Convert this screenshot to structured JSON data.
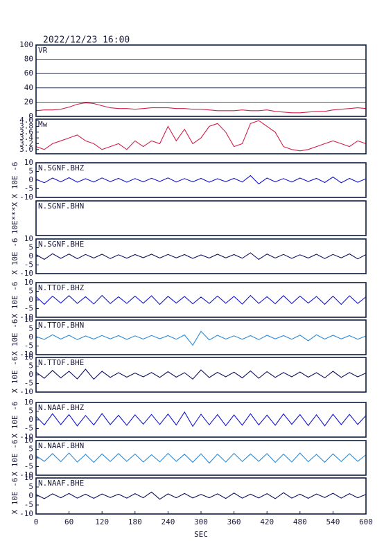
{
  "title": "2022/12/23 16:00",
  "chart_data": [
    {
      "type": "line",
      "title": "VR",
      "color": "#d0204a",
      "grid": true,
      "xlim": [
        0,
        600
      ],
      "ylim": [
        0,
        100
      ],
      "yticks": [
        0,
        20,
        40,
        60,
        80,
        100
      ],
      "x": [
        0,
        15,
        30,
        45,
        60,
        75,
        90,
        105,
        120,
        135,
        150,
        165,
        180,
        195,
        210,
        225,
        240,
        255,
        270,
        285,
        300,
        315,
        330,
        345,
        360,
        375,
        390,
        405,
        420,
        435,
        450,
        465,
        480,
        495,
        510,
        525,
        540,
        555,
        570,
        585,
        600
      ],
      "values": [
        8,
        9,
        9,
        10,
        13,
        17,
        19,
        18,
        15,
        12,
        11,
        11,
        10,
        11,
        12,
        12,
        12,
        11,
        11,
        10,
        10,
        9,
        8,
        8,
        8,
        9,
        8,
        8,
        9,
        7,
        6,
        5,
        5,
        6,
        7,
        7,
        9,
        10,
        11,
        12,
        11
      ]
    },
    {
      "type": "line",
      "title": "Mw",
      "color": "#d0204a",
      "xlim": [
        0,
        600
      ],
      "ylim": [
        2.85,
        4.05
      ],
      "yticks": [
        {
          "value": 3,
          "label": "3.0"
        },
        3.2,
        3.4,
        3.6,
        3.8,
        {
          "value": 4,
          "label": "4.0"
        }
      ],
      "x": [
        0,
        15,
        30,
        45,
        60,
        75,
        90,
        105,
        120,
        135,
        150,
        165,
        180,
        195,
        210,
        225,
        240,
        255,
        270,
        285,
        300,
        315,
        330,
        345,
        360,
        375,
        390,
        405,
        420,
        435,
        450,
        465,
        480,
        495,
        510,
        525,
        540,
        555,
        570,
        585,
        600
      ],
      "values": [
        3.1,
        3.0,
        3.2,
        3.3,
        3.4,
        3.5,
        3.3,
        3.2,
        3.0,
        3.1,
        3.2,
        3.0,
        3.3,
        3.1,
        3.3,
        3.2,
        3.8,
        3.3,
        3.7,
        3.2,
        3.4,
        3.8,
        3.9,
        3.6,
        3.1,
        3.2,
        3.9,
        4.0,
        3.8,
        3.6,
        3.1,
        3.0,
        2.95,
        3.0,
        3.1,
        3.2,
        3.3,
        3.2,
        3.1,
        3.3,
        3.2
      ]
    },
    {
      "type": "line",
      "title": "N.SGNF.BHZ",
      "y_label": "X 10E -6",
      "color": "#1414c8",
      "xlim": [
        0,
        600
      ],
      "ylim": [
        -10,
        10
      ],
      "yticks": [
        10,
        5,
        0,
        -5,
        -10
      ],
      "x": [
        0,
        15,
        30,
        45,
        60,
        75,
        90,
        105,
        120,
        135,
        150,
        165,
        180,
        195,
        210,
        225,
        240,
        255,
        270,
        285,
        300,
        315,
        330,
        345,
        360,
        375,
        390,
        405,
        420,
        435,
        450,
        465,
        480,
        495,
        510,
        525,
        540,
        555,
        570,
        585,
        600
      ],
      "values": [
        0.5,
        -1.5,
        1.2,
        -1,
        1.4,
        -1.2,
        0.8,
        -1.1,
        1.3,
        -0.9,
        1,
        -1.2,
        0.9,
        -1,
        1.1,
        -0.8,
        1.3,
        -1.1,
        0.9,
        -1,
        1,
        -1.2,
        0.8,
        -0.9,
        1,
        -1.1,
        2.6,
        -2.2,
        1.2,
        -1,
        0.9,
        -1.1,
        1.2,
        -0.8,
        1,
        -1.4,
        1.8,
        -1.5,
        1,
        -1.2,
        0.8
      ]
    },
    {
      "type": "line",
      "title": "N.SGNF.BHN",
      "y_label": "10E***X",
      "xlim": [
        0,
        600
      ]
    },
    {
      "type": "line",
      "title": "N.SGNF.BHE",
      "y_label": "X 10E -6",
      "color": "#101060",
      "xlim": [
        0,
        600
      ],
      "ylim": [
        -10,
        10
      ],
      "yticks": [
        10,
        5,
        0,
        -5,
        -10
      ],
      "x": [
        0,
        15,
        30,
        45,
        60,
        75,
        90,
        105,
        120,
        135,
        150,
        165,
        180,
        195,
        210,
        225,
        240,
        255,
        270,
        285,
        300,
        315,
        330,
        345,
        360,
        375,
        390,
        405,
        420,
        435,
        450,
        465,
        480,
        495,
        510,
        525,
        540,
        555,
        570,
        585,
        600
      ],
      "values": [
        1,
        -1.8,
        1.5,
        -1.2,
        1.3,
        -1.4,
        1.1,
        -1,
        1.2,
        -1.3,
        0.9,
        -1.1,
        1,
        -0.8,
        1.2,
        -1,
        1.1,
        -0.9,
        1,
        -1.2,
        0.8,
        -1,
        1.2,
        -0.9,
        1,
        -1.1,
        2,
        -1.8,
        1.3,
        -1,
        1.1,
        -1.2,
        0.9,
        -1,
        1.2,
        -1.3,
        1.1,
        -0.9,
        1.4,
        -1.5,
        1
      ]
    },
    {
      "type": "line",
      "title": "N.TTOF.BHZ",
      "y_label": "X 10E -6",
      "color": "#1414d0",
      "xlim": [
        0,
        600
      ],
      "ylim": [
        -10,
        10
      ],
      "yticks": [
        10,
        5,
        0,
        -5,
        -10
      ],
      "x": [
        0,
        15,
        30,
        45,
        60,
        75,
        90,
        105,
        120,
        135,
        150,
        165,
        180,
        195,
        210,
        225,
        240,
        255,
        270,
        285,
        300,
        315,
        330,
        345,
        360,
        375,
        390,
        405,
        420,
        435,
        450,
        465,
        480,
        495,
        510,
        525,
        540,
        555,
        570,
        585,
        600
      ],
      "values": [
        2,
        -2.5,
        2.2,
        -1.8,
        2.5,
        -2,
        1.9,
        -2.3,
        2.6,
        -2.1,
        1.8,
        -2,
        2.2,
        -1.9,
        2.4,
        -2.6,
        2.1,
        -1.8,
        2,
        -2.2,
        1.7,
        -2,
        2.3,
        -1.9,
        2.1,
        -2.4,
        2.6,
        -2,
        1.9,
        -2.2,
        2.5,
        -2.1,
        2.3,
        -1.8,
        2,
        -2.5,
        2.2,
        -2.6,
        2.4,
        -2,
        1.8
      ]
    },
    {
      "type": "line",
      "title": "N.TTOF.BHN",
      "y_label": "X 10E -6",
      "color": "#2a8ad8",
      "xlim": [
        0,
        600
      ],
      "ylim": [
        -10,
        10
      ],
      "yticks": [
        10,
        5,
        0,
        -5,
        -10
      ],
      "x": [
        0,
        15,
        30,
        45,
        60,
        75,
        90,
        105,
        120,
        135,
        150,
        165,
        180,
        195,
        210,
        225,
        240,
        255,
        270,
        285,
        300,
        315,
        330,
        345,
        360,
        375,
        390,
        405,
        420,
        435,
        450,
        465,
        480,
        495,
        510,
        525,
        540,
        555,
        570,
        585,
        600
      ],
      "values": [
        0.5,
        -1.2,
        1.5,
        -1,
        1.2,
        -1.3,
        0.8,
        -1,
        1.1,
        -0.9,
        1,
        -1.2,
        0.9,
        -1,
        1.1,
        -0.8,
        1,
        -1.1,
        1.4,
        -4.5,
        3.5,
        -1.5,
        1.2,
        -1,
        0.9,
        -1.1,
        1,
        -1.3,
        1.2,
        -0.9,
        1,
        -1.1,
        1.3,
        -2,
        1.5,
        -1,
        1.2,
        -0.9,
        1,
        -1.1,
        0.8
      ]
    },
    {
      "type": "line",
      "title": "N.TTOF.BHE",
      "y_label": "X 10E -6",
      "color": "#101060",
      "xlim": [
        0,
        600
      ],
      "ylim": [
        -10,
        10
      ],
      "yticks": [
        10,
        5,
        0,
        -5,
        -10
      ],
      "x": [
        0,
        15,
        30,
        45,
        60,
        75,
        90,
        105,
        120,
        135,
        150,
        165,
        180,
        195,
        210,
        225,
        240,
        255,
        270,
        285,
        300,
        315,
        330,
        345,
        360,
        375,
        390,
        405,
        420,
        435,
        450,
        465,
        480,
        495,
        510,
        525,
        540,
        555,
        570,
        585,
        600
      ],
      "values": [
        1.5,
        -2,
        2.5,
        -1.8,
        2,
        -2.4,
        3.2,
        -2.6,
        2,
        -1.5,
        1.2,
        -1.4,
        1,
        -1.2,
        1.3,
        -1.5,
        1.8,
        -1.4,
        1.2,
        -2.5,
        2.8,
        -1.6,
        1.4,
        -1.2,
        1.5,
        -1.8,
        2.2,
        -2,
        1.8,
        -1.5,
        1.3,
        -1.2,
        1.6,
        -1.4,
        1.2,
        -1.8,
        2,
        -1.5,
        1.3,
        -1.2,
        1
      ]
    },
    {
      "type": "line",
      "title": "N.NAAF.BHZ",
      "y_label": "X 10E -6",
      "color": "#1414d0",
      "xlim": [
        0,
        600
      ],
      "ylim": [
        -10,
        10
      ],
      "yticks": [
        10,
        5,
        0,
        -5,
        -10
      ],
      "x": [
        0,
        15,
        30,
        45,
        60,
        75,
        90,
        105,
        120,
        135,
        150,
        165,
        180,
        195,
        210,
        225,
        240,
        255,
        270,
        285,
        300,
        315,
        330,
        345,
        360,
        375,
        390,
        405,
        420,
        435,
        450,
        465,
        480,
        495,
        510,
        525,
        540,
        555,
        570,
        585,
        600
      ],
      "values": [
        2,
        -3,
        3.5,
        -2.8,
        3,
        -3.5,
        2.5,
        -3,
        3.6,
        -2.8,
        2.6,
        -3.2,
        2.9,
        -2.5,
        3.1,
        -2.7,
        3.3,
        -3,
        4.5,
        -3.8,
        3.2,
        -2.9,
        3,
        -3.4,
        2.8,
        -3.1,
        3.5,
        -3,
        2.7,
        -3.2,
        3.4,
        -2.6,
        3,
        -3.3,
        2.9,
        -3.5,
        3.2,
        -2.8,
        3.1,
        -2.7,
        2.5
      ]
    },
    {
      "type": "line",
      "title": "N.NAAF.BHN",
      "y_label": "X 10E -6",
      "color": "#2a8ad8",
      "xlim": [
        0,
        600
      ],
      "ylim": [
        -10,
        10
      ],
      "yticks": [
        10,
        5,
        0,
        -5,
        -10
      ],
      "x": [
        0,
        15,
        30,
        45,
        60,
        75,
        90,
        105,
        120,
        135,
        150,
        165,
        180,
        195,
        210,
        225,
        240,
        255,
        270,
        285,
        300,
        315,
        330,
        345,
        360,
        375,
        390,
        405,
        420,
        435,
        450,
        465,
        480,
        495,
        510,
        525,
        540,
        555,
        570,
        585,
        600
      ],
      "values": [
        1.2,
        -2,
        2.5,
        -2.2,
        2.8,
        -2.4,
        2,
        -2.6,
        2.3,
        -2.1,
        2.5,
        -2,
        2.2,
        -2.4,
        1.8,
        -2.3,
        2.6,
        -2,
        2.1,
        -2.5,
        2.4,
        -3,
        2.2,
        -2.4,
        2.6,
        -2.1,
        2.3,
        -2,
        2.5,
        -2.6,
        2.2,
        -2.4,
        2.8,
        -2.2,
        2,
        -2.5,
        2.3,
        -2.1,
        2.4,
        -2,
        1.8
      ]
    },
    {
      "type": "line",
      "title": "N.NAAF.BHE",
      "y_label": "X 10E -6",
      "color": "#101060",
      "xlim": [
        0,
        600
      ],
      "ylim": [
        -10,
        10
      ],
      "yticks": [
        10,
        5,
        0,
        -5,
        -10
      ],
      "x": [
        0,
        15,
        30,
        45,
        60,
        75,
        90,
        105,
        120,
        135,
        150,
        165,
        180,
        195,
        210,
        225,
        240,
        255,
        270,
        285,
        300,
        315,
        330,
        345,
        360,
        375,
        390,
        405,
        420,
        435,
        450,
        465,
        480,
        495,
        510,
        525,
        540,
        555,
        570,
        585,
        600
      ],
      "values": [
        0.8,
        -1.5,
        1.2,
        -1,
        1.4,
        -1.2,
        1,
        -1.3,
        1.1,
        -0.9,
        1,
        -1.2,
        1.3,
        -1,
        2.2,
        -1.8,
        1.2,
        -1,
        1.4,
        -1.1,
        0.9,
        -1,
        1.2,
        -1.4,
        1.6,
        -1.2,
        1,
        -1.1,
        1.3,
        -1.5,
        1.8,
        -1.2,
        1,
        -1.3,
        1.1,
        -0.9,
        1.5,
        -1.2,
        1.3,
        -1,
        0.9
      ],
      "x_label": "SEC",
      "xticks": [
        0,
        60,
        120,
        180,
        240,
        300,
        360,
        420,
        480,
        540,
        600
      ]
    }
  ]
}
